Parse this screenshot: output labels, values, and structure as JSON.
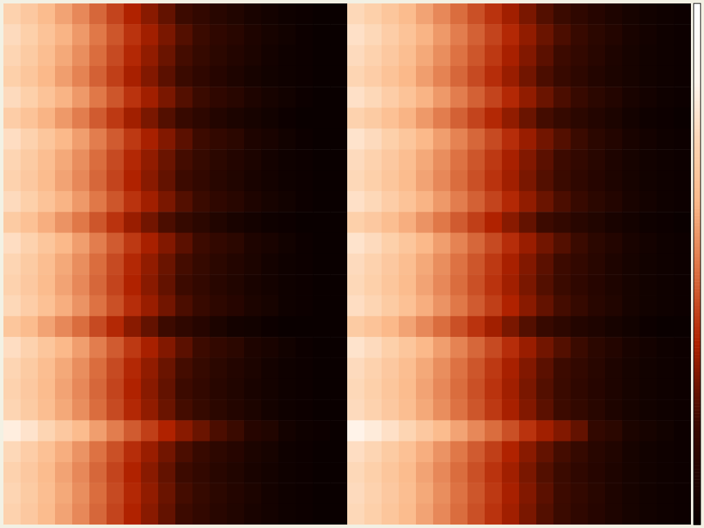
{
  "chart_data": {
    "type": "heatmap",
    "tick_labels": false,
    "colorbar": {
      "range": [
        0,
        1
      ]
    },
    "panels": [
      {
        "values": [
          [
            0.72,
            0.68,
            0.63,
            0.58,
            0.53,
            0.47,
            0.41,
            0.35,
            0.3,
            0.25,
            0.2,
            0.16,
            0.12,
            0.09,
            0.06,
            0.04,
            0.02,
            0.01,
            0,
            0
          ],
          [
            0.75,
            0.71,
            0.66,
            0.61,
            0.56,
            0.5,
            0.44,
            0.38,
            0.33,
            0.28,
            0.23,
            0.19,
            0.15,
            0.12,
            0.08,
            0.05,
            0.03,
            0.01,
            0,
            0
          ],
          [
            0.73,
            0.69,
            0.64,
            0.59,
            0.54,
            0.48,
            0.42,
            0.36,
            0.31,
            0.26,
            0.21,
            0.17,
            0.13,
            0.1,
            0.07,
            0.04,
            0.02,
            0.01,
            0,
            0
          ],
          [
            0.71,
            0.67,
            0.62,
            0.57,
            0.52,
            0.46,
            0.4,
            0.34,
            0.29,
            0.24,
            0.19,
            0.15,
            0.11,
            0.08,
            0.05,
            0.03,
            0.02,
            0.01,
            0,
            0
          ],
          [
            0.75,
            0.71,
            0.66,
            0.61,
            0.56,
            0.5,
            0.44,
            0.38,
            0.33,
            0.28,
            0.23,
            0.19,
            0.15,
            0.12,
            0.08,
            0.05,
            0.03,
            0.01,
            0,
            0
          ],
          [
            0.7,
            0.66,
            0.61,
            0.56,
            0.51,
            0.45,
            0.39,
            0.33,
            0.28,
            0.23,
            0.18,
            0.14,
            0.1,
            0.07,
            0.05,
            0.03,
            0.01,
            0,
            0,
            0
          ],
          [
            0.76,
            0.72,
            0.67,
            0.62,
            0.57,
            0.51,
            0.45,
            0.39,
            0.34,
            0.29,
            0.24,
            0.2,
            0.16,
            0.13,
            0.08,
            0.06,
            0.03,
            0.01,
            0,
            0
          ],
          [
            0.73,
            0.69,
            0.64,
            0.59,
            0.54,
            0.48,
            0.42,
            0.36,
            0.31,
            0.26,
            0.21,
            0.17,
            0.13,
            0.1,
            0.07,
            0.04,
            0.02,
            0.01,
            0,
            0
          ],
          [
            0.72,
            0.68,
            0.63,
            0.58,
            0.53,
            0.47,
            0.41,
            0.35,
            0.3,
            0.25,
            0.2,
            0.16,
            0.12,
            0.09,
            0.06,
            0.04,
            0.02,
            0.01,
            0,
            0
          ],
          [
            0.75,
            0.71,
            0.66,
            0.61,
            0.56,
            0.5,
            0.44,
            0.38,
            0.33,
            0.28,
            0.23,
            0.19,
            0.15,
            0.12,
            0.08,
            0.05,
            0.03,
            0.01,
            0,
            0
          ],
          [
            0.69,
            0.65,
            0.6,
            0.55,
            0.5,
            0.44,
            0.38,
            0.32,
            0.27,
            0.22,
            0.17,
            0.13,
            0.09,
            0.06,
            0.04,
            0.02,
            0.01,
            0,
            0,
            0
          ],
          [
            0.76,
            0.72,
            0.67,
            0.62,
            0.57,
            0.51,
            0.45,
            0.39,
            0.34,
            0.29,
            0.24,
            0.2,
            0.16,
            0.13,
            0.08,
            0.06,
            0.03,
            0.01,
            0,
            0
          ],
          [
            0.73,
            0.69,
            0.64,
            0.59,
            0.54,
            0.48,
            0.42,
            0.36,
            0.31,
            0.26,
            0.21,
            0.17,
            0.13,
            0.1,
            0.07,
            0.04,
            0.02,
            0.01,
            0,
            0
          ],
          [
            0.72,
            0.68,
            0.63,
            0.58,
            0.53,
            0.47,
            0.41,
            0.35,
            0.3,
            0.25,
            0.2,
            0.16,
            0.12,
            0.09,
            0.06,
            0.04,
            0.02,
            0.01,
            0,
            0
          ],
          [
            0.74,
            0.7,
            0.65,
            0.6,
            0.55,
            0.49,
            0.43,
            0.37,
            0.32,
            0.27,
            0.22,
            0.18,
            0.14,
            0.11,
            0.07,
            0.05,
            0.02,
            0.01,
            0,
            0
          ],
          [
            0.67,
            0.63,
            0.58,
            0.53,
            0.48,
            0.42,
            0.36,
            0.3,
            0.25,
            0.2,
            0.15,
            0.11,
            0.07,
            0.04,
            0.03,
            0.01,
            0,
            0,
            0,
            0
          ],
          [
            0.76,
            0.72,
            0.67,
            0.62,
            0.57,
            0.51,
            0.45,
            0.39,
            0.34,
            0.29,
            0.24,
            0.2,
            0.16,
            0.13,
            0.08,
            0.06,
            0.03,
            0.01,
            0,
            0
          ],
          [
            0.73,
            0.69,
            0.64,
            0.59,
            0.54,
            0.48,
            0.42,
            0.36,
            0.31,
            0.26,
            0.21,
            0.17,
            0.13,
            0.1,
            0.07,
            0.04,
            0.02,
            0.01,
            0,
            0
          ],
          [
            0.72,
            0.68,
            0.63,
            0.58,
            0.53,
            0.47,
            0.41,
            0.35,
            0.3,
            0.25,
            0.2,
            0.16,
            0.12,
            0.09,
            0.06,
            0.04,
            0.02,
            0.01,
            0,
            0
          ],
          [
            0.73,
            0.69,
            0.64,
            0.59,
            0.54,
            0.48,
            0.42,
            0.36,
            0.31,
            0.26,
            0.21,
            0.17,
            0.13,
            0.1,
            0.07,
            0.04,
            0.02,
            0.01,
            0,
            0
          ],
          [
            0.82,
            0.78,
            0.73,
            0.68,
            0.63,
            0.57,
            0.51,
            0.45,
            0.4,
            0.35,
            0.3,
            0.26,
            0.22,
            0.19,
            0.11,
            0.09,
            0.04,
            0.02,
            0.01,
            0
          ],
          [
            0.74,
            0.7,
            0.65,
            0.6,
            0.55,
            0.49,
            0.43,
            0.37,
            0.32,
            0.27,
            0.22,
            0.18,
            0.14,
            0.11,
            0.07,
            0.05,
            0.02,
            0.01,
            0,
            0
          ],
          [
            0.72,
            0.68,
            0.63,
            0.58,
            0.53,
            0.47,
            0.41,
            0.35,
            0.3,
            0.25,
            0.2,
            0.16,
            0.12,
            0.09,
            0.06,
            0.04,
            0.02,
            0.01,
            0,
            0
          ],
          [
            0.73,
            0.69,
            0.64,
            0.59,
            0.54,
            0.48,
            0.42,
            0.36,
            0.31,
            0.26,
            0.21,
            0.17,
            0.13,
            0.1,
            0.07,
            0.04,
            0.02,
            0.01,
            0,
            0
          ],
          [
            0.72,
            0.68,
            0.63,
            0.58,
            0.53,
            0.47,
            0.41,
            0.35,
            0.3,
            0.25,
            0.2,
            0.16,
            0.12,
            0.09,
            0.06,
            0.04,
            0.02,
            0.01,
            0,
            0
          ]
        ]
      },
      {
        "values": [
          [
            0.74,
            0.71,
            0.67,
            0.63,
            0.58,
            0.53,
            0.48,
            0.43,
            0.38,
            0.33,
            0.28,
            0.23,
            0.19,
            0.15,
            0.11,
            0.08,
            0.05,
            0.03,
            0.02,
            0.01
          ],
          [
            0.77,
            0.74,
            0.7,
            0.66,
            0.61,
            0.56,
            0.51,
            0.46,
            0.41,
            0.36,
            0.31,
            0.26,
            0.22,
            0.18,
            0.13,
            0.1,
            0.06,
            0.04,
            0.02,
            0.01
          ],
          [
            0.75,
            0.72,
            0.68,
            0.64,
            0.59,
            0.54,
            0.49,
            0.44,
            0.39,
            0.34,
            0.29,
            0.24,
            0.2,
            0.16,
            0.12,
            0.08,
            0.05,
            0.03,
            0.02,
            0.01
          ],
          [
            0.73,
            0.7,
            0.66,
            0.62,
            0.57,
            0.52,
            0.47,
            0.42,
            0.37,
            0.32,
            0.27,
            0.22,
            0.18,
            0.14,
            0.1,
            0.07,
            0.05,
            0.03,
            0.02,
            0.01
          ],
          [
            0.77,
            0.74,
            0.7,
            0.66,
            0.61,
            0.56,
            0.51,
            0.46,
            0.41,
            0.36,
            0.31,
            0.26,
            0.22,
            0.18,
            0.13,
            0.1,
            0.06,
            0.04,
            0.02,
            0.01
          ],
          [
            0.72,
            0.69,
            0.65,
            0.61,
            0.56,
            0.51,
            0.46,
            0.41,
            0.36,
            0.31,
            0.26,
            0.21,
            0.17,
            0.13,
            0.1,
            0.07,
            0.04,
            0.02,
            0.01,
            0
          ],
          [
            0.78,
            0.75,
            0.71,
            0.67,
            0.62,
            0.57,
            0.52,
            0.47,
            0.42,
            0.37,
            0.32,
            0.27,
            0.23,
            0.19,
            0.13,
            0.1,
            0.06,
            0.04,
            0.02,
            0.01
          ],
          [
            0.75,
            0.72,
            0.68,
            0.64,
            0.59,
            0.54,
            0.49,
            0.44,
            0.39,
            0.34,
            0.29,
            0.24,
            0.2,
            0.16,
            0.12,
            0.08,
            0.05,
            0.03,
            0.02,
            0.01
          ],
          [
            0.74,
            0.71,
            0.67,
            0.63,
            0.58,
            0.53,
            0.48,
            0.43,
            0.38,
            0.33,
            0.28,
            0.23,
            0.19,
            0.15,
            0.11,
            0.08,
            0.05,
            0.03,
            0.02,
            0.01
          ],
          [
            0.77,
            0.74,
            0.7,
            0.66,
            0.61,
            0.56,
            0.51,
            0.46,
            0.41,
            0.36,
            0.31,
            0.26,
            0.22,
            0.18,
            0.13,
            0.1,
            0.06,
            0.04,
            0.02,
            0.01
          ],
          [
            0.71,
            0.68,
            0.64,
            0.6,
            0.55,
            0.5,
            0.45,
            0.4,
            0.35,
            0.3,
            0.25,
            0.2,
            0.16,
            0.12,
            0.09,
            0.06,
            0.04,
            0.02,
            0.01,
            0
          ],
          [
            0.78,
            0.75,
            0.71,
            0.67,
            0.62,
            0.57,
            0.52,
            0.47,
            0.42,
            0.37,
            0.32,
            0.27,
            0.23,
            0.19,
            0.13,
            0.1,
            0.06,
            0.04,
            0.02,
            0.01
          ],
          [
            0.75,
            0.72,
            0.68,
            0.64,
            0.59,
            0.54,
            0.49,
            0.44,
            0.39,
            0.34,
            0.29,
            0.24,
            0.2,
            0.16,
            0.12,
            0.08,
            0.05,
            0.03,
            0.02,
            0.01
          ],
          [
            0.74,
            0.71,
            0.67,
            0.63,
            0.58,
            0.53,
            0.48,
            0.43,
            0.38,
            0.33,
            0.28,
            0.23,
            0.19,
            0.15,
            0.11,
            0.08,
            0.05,
            0.03,
            0.02,
            0.01
          ],
          [
            0.76,
            0.73,
            0.69,
            0.65,
            0.6,
            0.55,
            0.5,
            0.45,
            0.4,
            0.35,
            0.3,
            0.25,
            0.21,
            0.17,
            0.12,
            0.09,
            0.05,
            0.03,
            0.02,
            0.01
          ],
          [
            0.69,
            0.66,
            0.62,
            0.58,
            0.53,
            0.48,
            0.43,
            0.38,
            0.33,
            0.28,
            0.23,
            0.18,
            0.14,
            0.1,
            0.08,
            0.05,
            0.03,
            0.01,
            0,
            0
          ],
          [
            0.78,
            0.75,
            0.71,
            0.67,
            0.62,
            0.57,
            0.52,
            0.47,
            0.42,
            0.37,
            0.32,
            0.27,
            0.23,
            0.19,
            0.13,
            0.1,
            0.06,
            0.04,
            0.02,
            0.01
          ],
          [
            0.75,
            0.72,
            0.68,
            0.64,
            0.59,
            0.54,
            0.49,
            0.44,
            0.39,
            0.34,
            0.29,
            0.24,
            0.2,
            0.16,
            0.12,
            0.08,
            0.05,
            0.03,
            0.02,
            0.01
          ],
          [
            0.74,
            0.71,
            0.67,
            0.63,
            0.58,
            0.53,
            0.48,
            0.43,
            0.38,
            0.33,
            0.28,
            0.23,
            0.19,
            0.15,
            0.11,
            0.08,
            0.05,
            0.03,
            0.02,
            0.01
          ],
          [
            0.75,
            0.72,
            0.68,
            0.64,
            0.59,
            0.54,
            0.49,
            0.44,
            0.39,
            0.34,
            0.29,
            0.24,
            0.2,
            0.16,
            0.12,
            0.08,
            0.05,
            0.03,
            0.02,
            0.01
          ],
          [
            0.84,
            0.81,
            0.77,
            0.73,
            0.68,
            0.63,
            0.58,
            0.53,
            0.48,
            0.43,
            0.38,
            0.33,
            0.29,
            0.25,
            0.16,
            0.13,
            0.07,
            0.05,
            0.03,
            0.01
          ],
          [
            0.76,
            0.73,
            0.69,
            0.65,
            0.6,
            0.55,
            0.5,
            0.45,
            0.4,
            0.35,
            0.3,
            0.25,
            0.21,
            0.17,
            0.12,
            0.09,
            0.05,
            0.03,
            0.02,
            0.01
          ],
          [
            0.74,
            0.71,
            0.67,
            0.63,
            0.58,
            0.53,
            0.48,
            0.43,
            0.38,
            0.33,
            0.28,
            0.23,
            0.19,
            0.15,
            0.11,
            0.08,
            0.05,
            0.03,
            0.02,
            0.01
          ],
          [
            0.75,
            0.72,
            0.68,
            0.64,
            0.59,
            0.54,
            0.49,
            0.44,
            0.39,
            0.34,
            0.29,
            0.24,
            0.2,
            0.16,
            0.12,
            0.08,
            0.05,
            0.03,
            0.02,
            0.01
          ],
          [
            0.74,
            0.71,
            0.67,
            0.63,
            0.58,
            0.53,
            0.48,
            0.43,
            0.38,
            0.33,
            0.28,
            0.23,
            0.19,
            0.15,
            0.11,
            0.08,
            0.05,
            0.03,
            0.02,
            0.01
          ]
        ]
      }
    ]
  }
}
